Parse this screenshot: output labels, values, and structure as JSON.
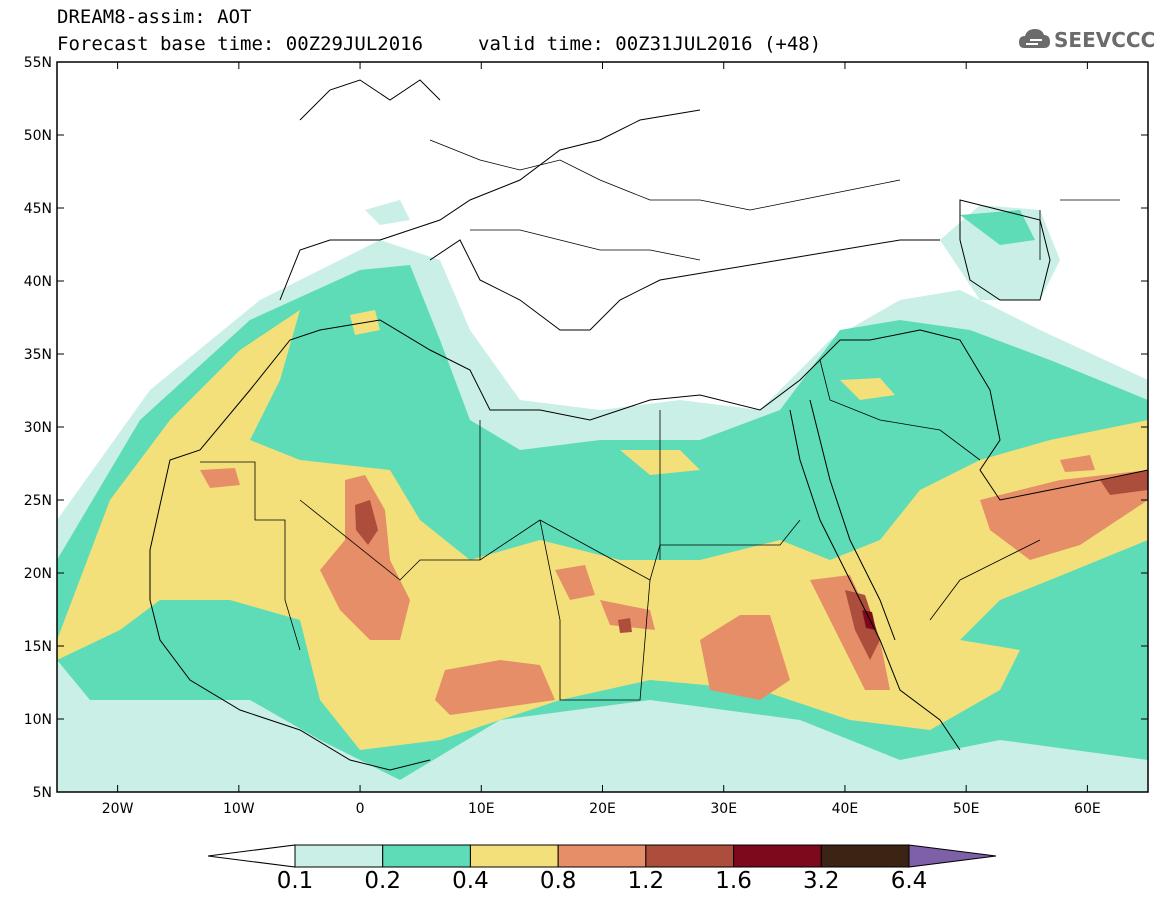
{
  "header": {
    "line1": "DREAM8-assim: AOT",
    "line2": "Forecast base time: 00Z29JUL2016",
    "valid": "valid time: 00Z31JUL2016 (+48)"
  },
  "logo": {
    "text": "SEEVCCC",
    "icon": "cloud-icon"
  },
  "map": {
    "field": "AOT",
    "lat_range": [
      5,
      55
    ],
    "lon_range": [
      -25,
      65
    ],
    "lat_labels": [
      "55N",
      "50N",
      "45N",
      "40N",
      "35N",
      "30N",
      "25N",
      "20N",
      "15N",
      "10N",
      "5N"
    ],
    "lon_labels": [
      "20W",
      "10W",
      "0",
      "10E",
      "20E",
      "30E",
      "40E",
      "50E",
      "60E"
    ]
  },
  "colorbar": {
    "labels": [
      "0.1",
      "0.2",
      "0.4",
      "0.8",
      "1.2",
      "1.6",
      "3.2",
      "6.4"
    ],
    "colors": [
      "#ffffff",
      "#c9efe6",
      "#5edcb7",
      "#f3e07a",
      "#e58e67",
      "#ad4d3c",
      "#7d0a1c",
      "#3c2414",
      "#7e60a8"
    ]
  }
}
